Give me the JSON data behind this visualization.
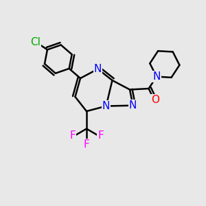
{
  "background_color": "#e8e8e8",
  "bond_color": "#000000",
  "bond_width": 1.8,
  "atom_colors": {
    "N": "#0000ff",
    "O": "#ff0000",
    "F": "#ff00ff",
    "Cl": "#00aa00",
    "C": "#000000"
  },
  "font_size_atom": 11
}
